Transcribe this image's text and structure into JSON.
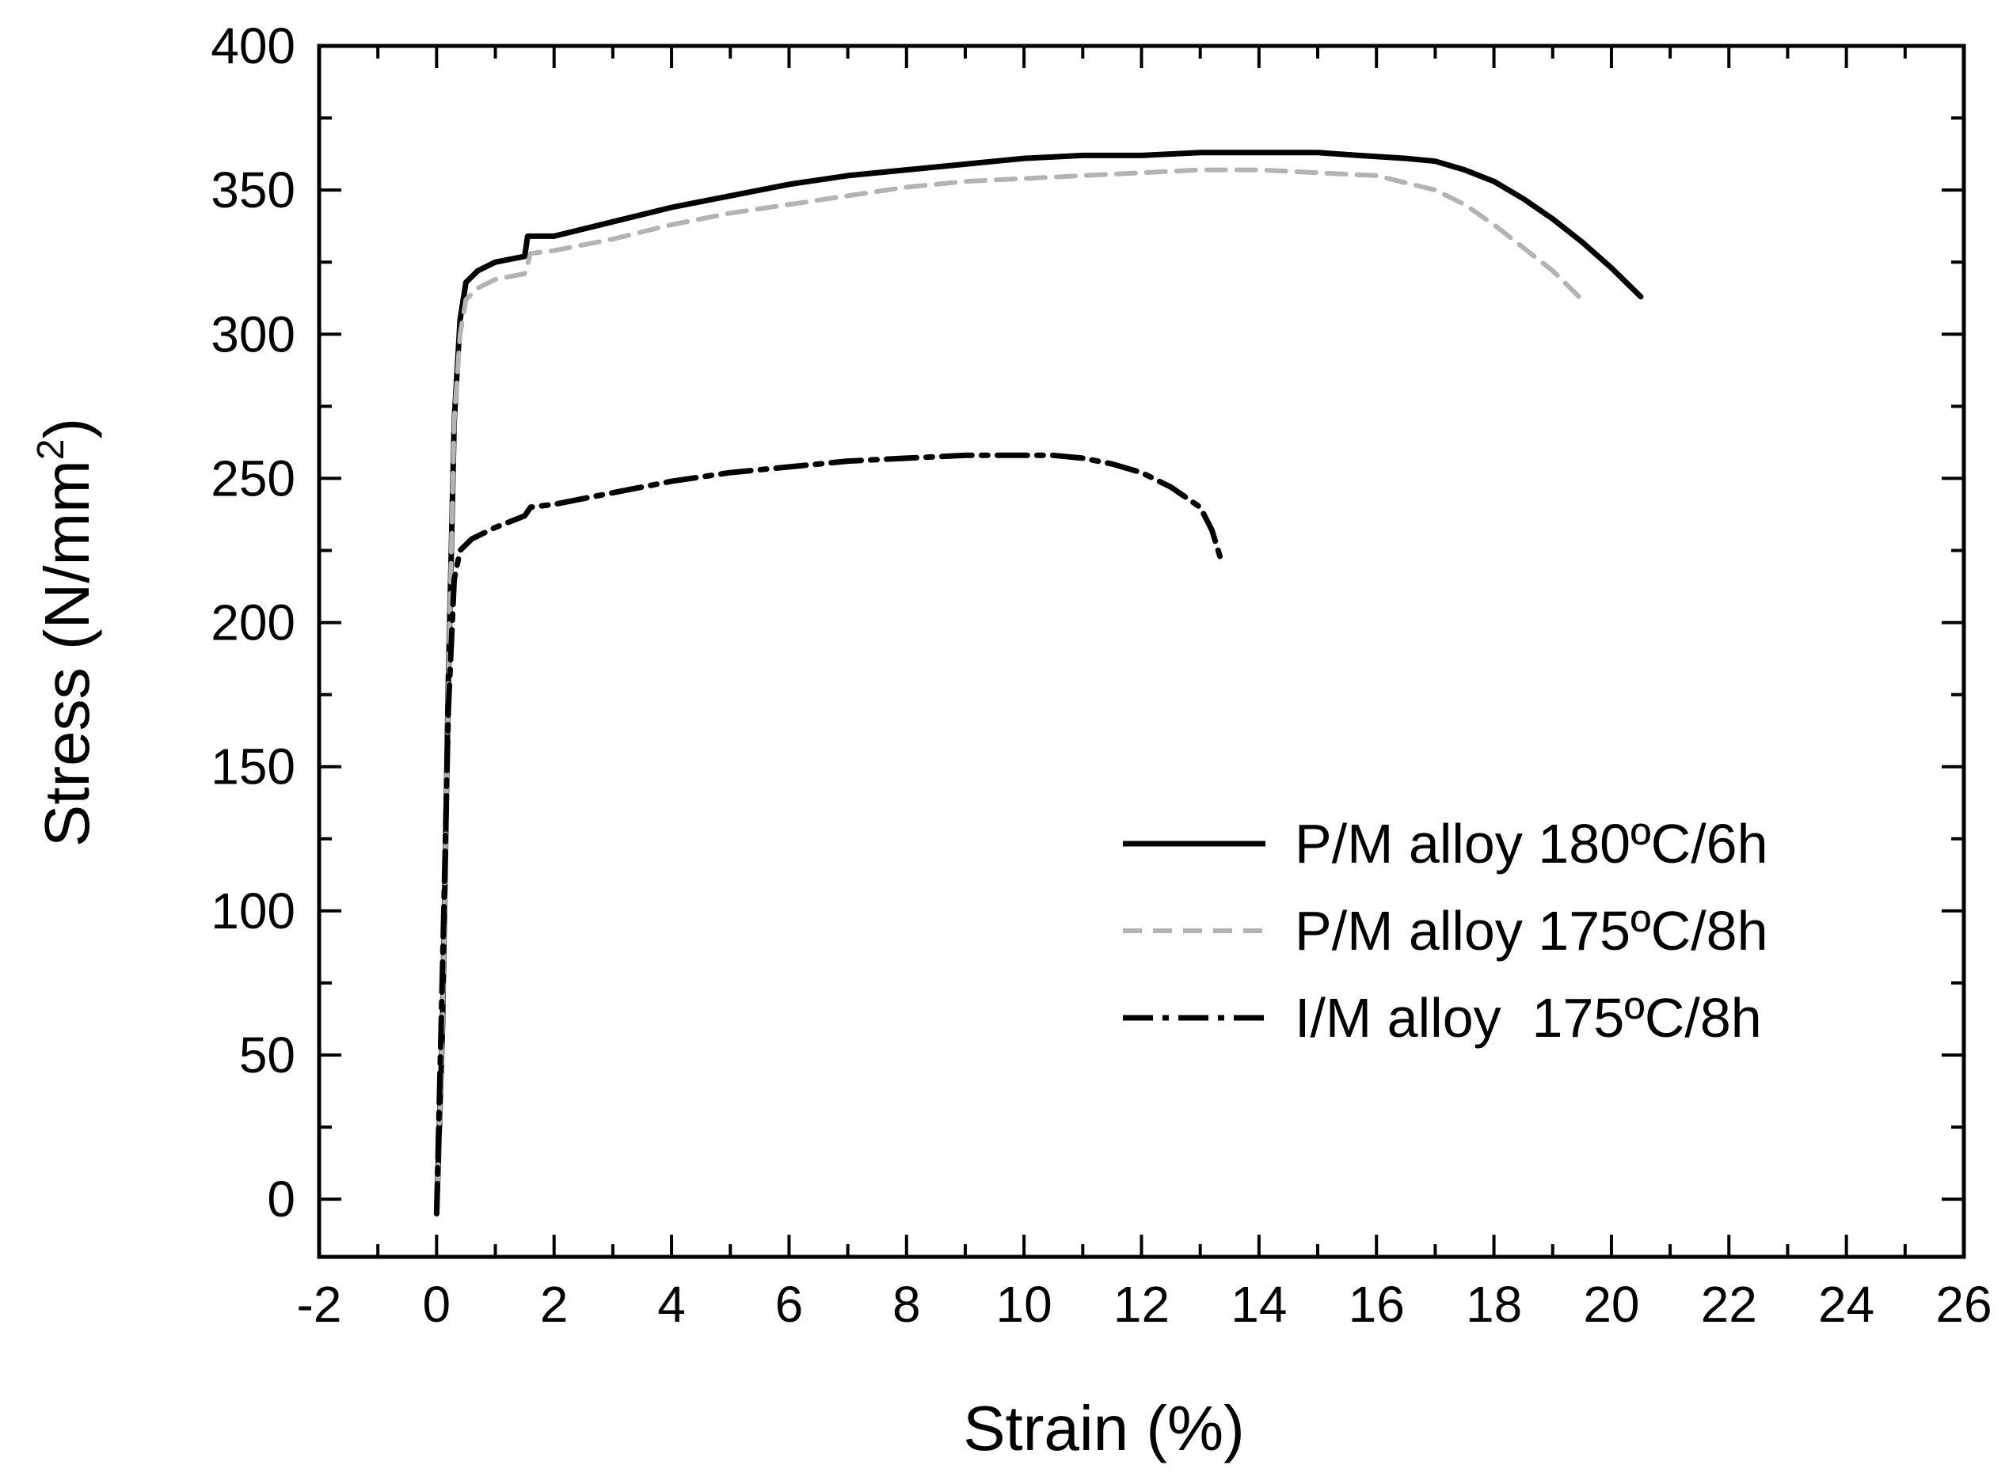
{
  "chart_data": {
    "type": "line",
    "xlabel": "Strain (%)",
    "ylabel_main": "Stress (N/mm",
    "ylabel_sup": "2",
    "ylabel_close": ")",
    "xlim": [
      -2,
      26
    ],
    "ylim": [
      -20,
      400
    ],
    "x_ticks": [
      -2,
      0,
      2,
      4,
      6,
      8,
      10,
      12,
      14,
      16,
      18,
      20,
      22,
      24,
      26
    ],
    "x_tick_labels": [
      "-2",
      "0",
      "2",
      "4",
      "6",
      "8",
      "10",
      "12",
      "14",
      "16",
      "18",
      "20",
      "22",
      "24",
      "26"
    ],
    "y_ticks": [
      0,
      50,
      100,
      150,
      200,
      250,
      300,
      350,
      400
    ],
    "y_tick_labels": [
      "0",
      "50",
      "100",
      "150",
      "200",
      "250",
      "300",
      "350",
      "400"
    ],
    "grid": false,
    "legend_position": "center-right",
    "series": [
      {
        "name": "P/M alloy 180ºC/6h",
        "style": "solid",
        "color": "#000000",
        "x": [
          0,
          0.1,
          0.2,
          0.3,
          0.4,
          0.5,
          0.7,
          1.0,
          1.5,
          1.55,
          1.7,
          2,
          3,
          4,
          5,
          6,
          7,
          8,
          9,
          10,
          11,
          12,
          13,
          14,
          15,
          15.7,
          16.5,
          17,
          17.5,
          18,
          18.5,
          19,
          19.5,
          20,
          20.5
        ],
        "y": [
          -5,
          60,
          180,
          270,
          305,
          318,
          322,
          325,
          327,
          334,
          334,
          334,
          339,
          344,
          348,
          352,
          355,
          357,
          359,
          361,
          362,
          362,
          363,
          363,
          363,
          362,
          361,
          360,
          357,
          353,
          347,
          340,
          332,
          323,
          313
        ]
      },
      {
        "name": "P/M alloy 175ºC/8h",
        "style": "dashed",
        "color": "#b3b3b3",
        "x": [
          0,
          0.1,
          0.2,
          0.3,
          0.4,
          0.5,
          0.7,
          1.0,
          1.5,
          1.6,
          2,
          3,
          4,
          5,
          6,
          7,
          8,
          9,
          10,
          11,
          12,
          13,
          14,
          15,
          16,
          17,
          17.5,
          18,
          18.5,
          19,
          19.5
        ],
        "y": [
          -5,
          60,
          180,
          270,
          300,
          312,
          316,
          319,
          321,
          328,
          329,
          333,
          338,
          342,
          345,
          348,
          351,
          353,
          354,
          355,
          356,
          357,
          357,
          356,
          355,
          350,
          345,
          338,
          330,
          322,
          312
        ]
      },
      {
        "name": "I/M alloy  175ºC/8h",
        "style": "dashdot",
        "color": "#000000",
        "x": [
          0,
          0.1,
          0.2,
          0.3,
          0.4,
          0.6,
          1.0,
          1.5,
          1.6,
          2,
          3,
          4,
          5,
          6,
          7,
          8,
          9,
          10,
          10.5,
          11,
          11.5,
          12,
          12.5,
          13,
          13.2,
          13.35
        ],
        "y": [
          -5,
          80,
          170,
          215,
          225,
          229,
          233,
          237,
          240,
          241,
          245,
          249,
          252,
          254,
          256,
          257,
          258,
          258,
          258,
          257,
          255,
          252,
          247,
          240,
          232,
          222
        ]
      }
    ]
  }
}
